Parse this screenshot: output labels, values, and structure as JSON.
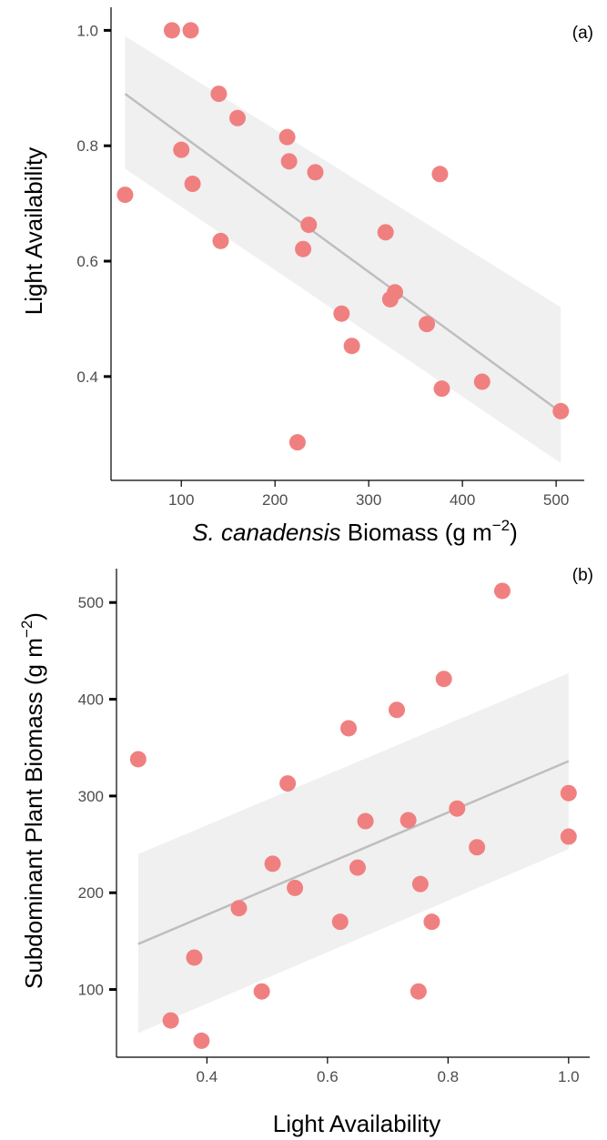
{
  "chart_data": [
    {
      "type": "scatter",
      "panel_label": "(a)",
      "xlabel_italic": "S. canadensis",
      "xlabel_rest": " Biomass (g m",
      "xlabel_sup": "−2",
      "xlabel_close": ")",
      "ylabel": "Light Availability",
      "xlim": [
        25,
        530
      ],
      "ylim": [
        0.22,
        1.04
      ],
      "xticks": [
        100,
        200,
        300,
        400,
        500
      ],
      "yticks": [
        0.4,
        0.6,
        0.8,
        1.0
      ],
      "xtick_labels": [
        "100",
        "200",
        "300",
        "400",
        "500"
      ],
      "ytick_labels": [
        "0.4",
        "0.6",
        "0.8",
        "1.0"
      ],
      "grid": false,
      "point_color": "#f08080",
      "fit_color": "#bebebe",
      "band_color": "#ebebeb",
      "points": [
        {
          "x": 40,
          "y": 0.715
        },
        {
          "x": 90,
          "y": 1.0
        },
        {
          "x": 110,
          "y": 1.0
        },
        {
          "x": 140,
          "y": 0.89
        },
        {
          "x": 160,
          "y": 0.848
        },
        {
          "x": 100,
          "y": 0.793
        },
        {
          "x": 112,
          "y": 0.734
        },
        {
          "x": 142,
          "y": 0.635
        },
        {
          "x": 213,
          "y": 0.815
        },
        {
          "x": 215,
          "y": 0.773
        },
        {
          "x": 243,
          "y": 0.754
        },
        {
          "x": 236,
          "y": 0.663
        },
        {
          "x": 230,
          "y": 0.621
        },
        {
          "x": 224,
          "y": 0.286
        },
        {
          "x": 271,
          "y": 0.509
        },
        {
          "x": 282,
          "y": 0.453
        },
        {
          "x": 318,
          "y": 0.65
        },
        {
          "x": 328,
          "y": 0.546
        },
        {
          "x": 323,
          "y": 0.534
        },
        {
          "x": 362,
          "y": 0.491
        },
        {
          "x": 376,
          "y": 0.751
        },
        {
          "x": 378,
          "y": 0.379
        },
        {
          "x": 421,
          "y": 0.391
        },
        {
          "x": 505,
          "y": 0.34
        }
      ],
      "fit_line": {
        "x": [
          40,
          505
        ],
        "y": [
          0.89,
          0.338
        ]
      },
      "confidence_band": {
        "x": [
          40,
          505
        ],
        "upper": [
          0.99,
          0.52
        ],
        "lower": [
          0.76,
          0.25
        ]
      }
    },
    {
      "type": "scatter",
      "panel_label": "(b)",
      "xlabel": "Light Availability",
      "ylabel_rest": "Subdominant Plant Biomass (g m",
      "ylabel_sup": "−2",
      "ylabel_close": ")",
      "xlim": [
        0.25,
        1.035
      ],
      "ylim": [
        30,
        535
      ],
      "xticks": [
        0.4,
        0.6,
        0.8,
        1.0
      ],
      "yticks": [
        100,
        200,
        300,
        400,
        500
      ],
      "xtick_labels": [
        "0.4",
        "0.6",
        "0.8",
        "1.0"
      ],
      "ytick_labels": [
        "100",
        "200",
        "300",
        "400",
        "500"
      ],
      "grid": false,
      "point_color": "#f08080",
      "fit_color": "#bebebe",
      "band_color": "#ebebeb",
      "points": [
        {
          "x": 0.286,
          "y": 338
        },
        {
          "x": 0.34,
          "y": 68
        },
        {
          "x": 0.379,
          "y": 133
        },
        {
          "x": 0.391,
          "y": 47
        },
        {
          "x": 0.453,
          "y": 184
        },
        {
          "x": 0.491,
          "y": 98
        },
        {
          "x": 0.509,
          "y": 230
        },
        {
          "x": 0.534,
          "y": 313
        },
        {
          "x": 0.546,
          "y": 205
        },
        {
          "x": 0.621,
          "y": 170
        },
        {
          "x": 0.635,
          "y": 370
        },
        {
          "x": 0.65,
          "y": 226
        },
        {
          "x": 0.663,
          "y": 274
        },
        {
          "x": 0.715,
          "y": 389
        },
        {
          "x": 0.734,
          "y": 275
        },
        {
          "x": 0.751,
          "y": 98
        },
        {
          "x": 0.754,
          "y": 209
        },
        {
          "x": 0.773,
          "y": 170
        },
        {
          "x": 0.793,
          "y": 421
        },
        {
          "x": 0.815,
          "y": 287
        },
        {
          "x": 0.848,
          "y": 247
        },
        {
          "x": 0.89,
          "y": 512
        },
        {
          "x": 1.0,
          "y": 303
        },
        {
          "x": 1.0,
          "y": 258
        }
      ],
      "fit_line": {
        "x": [
          0.286,
          1.0
        ],
        "y": [
          147,
          336
        ]
      },
      "confidence_band": {
        "x": [
          0.286,
          1.0
        ],
        "upper": [
          240,
          427
        ],
        "lower": [
          55,
          245
        ]
      }
    }
  ]
}
